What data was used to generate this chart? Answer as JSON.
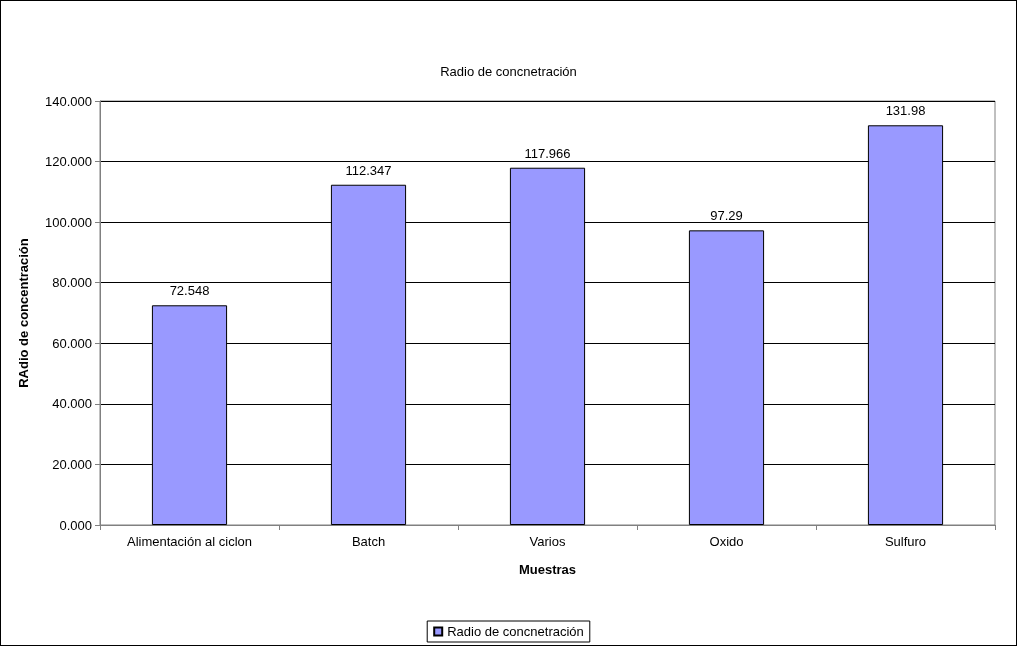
{
  "chart_data": {
    "type": "bar",
    "title": "Radio de concnetración",
    "xlabel": "Muestras",
    "ylabel": "RAdio de concentración",
    "categories": [
      "Alimentación al ciclon",
      "Batch",
      "Varios",
      "Oxido",
      "Sulfuro"
    ],
    "series": [
      {
        "name": "Radio de concnetración",
        "color": "#9999ff",
        "values": [
          72.548,
          112.347,
          117.966,
          97.29,
          131.98
        ]
      }
    ],
    "ylim": [
      0,
      140
    ],
    "yticks": [
      {
        "value": 0,
        "label": "0.000"
      },
      {
        "value": 20,
        "label": "20.000"
      },
      {
        "value": 40,
        "label": "40.000"
      },
      {
        "value": 60,
        "label": "60.000"
      },
      {
        "value": 80,
        "label": "80.000"
      },
      {
        "value": 100,
        "label": "100.000"
      },
      {
        "value": 120,
        "label": "120.000"
      },
      {
        "value": 140,
        "label": "140.000"
      }
    ],
    "grid": "y",
    "legend": "bottom",
    "data_labels": true
  }
}
